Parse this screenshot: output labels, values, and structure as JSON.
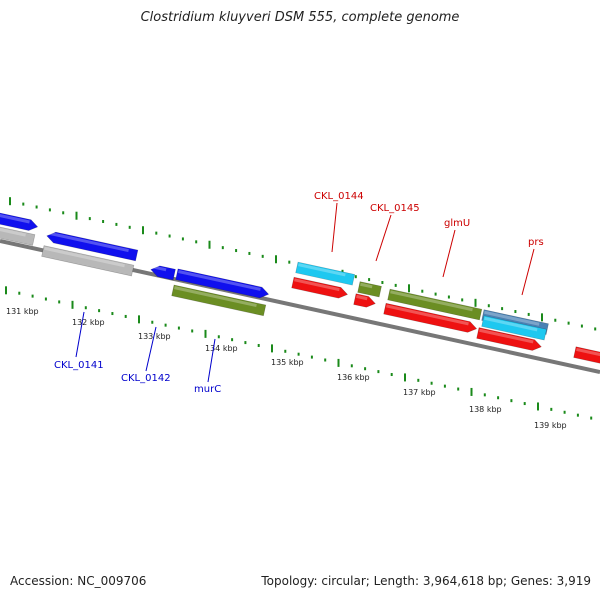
{
  "title": "Clostridium kluyveri DSM 555, complete genome",
  "footer": {
    "accession": "Accession: NC_009706",
    "summary": "Topology: circular; Length: 3,964,618 bp; Genes: 3,919"
  },
  "colors": {
    "backbone": "#777777",
    "gene_blue": "#1010ee",
    "gene_red": "#ee1111",
    "gene_green": "#6b8e23",
    "gene_cyan": "#1ec8f0",
    "gene_steel": "#4a82b4",
    "pseudo_gray": "#b8b8b8",
    "tick_green": "#1a8a1a",
    "label_blue": "#0000cc",
    "label_red": "#cc0000"
  },
  "ticks": {
    "labels": [
      "131 kbp",
      "132 kbp",
      "133 kbp",
      "134 kbp",
      "135 kbp",
      "136 kbp",
      "137 kbp",
      "138 kbp",
      "139 kbp"
    ]
  },
  "genes": {
    "labels": {
      "CKL_0141": "CKL_0141",
      "CKL_0142": "CKL_0142",
      "murC": "murC",
      "CKL_0144": "CKL_0144",
      "CKL_0145": "CKL_0145",
      "glmU": "glmU",
      "prs": "prs"
    }
  }
}
